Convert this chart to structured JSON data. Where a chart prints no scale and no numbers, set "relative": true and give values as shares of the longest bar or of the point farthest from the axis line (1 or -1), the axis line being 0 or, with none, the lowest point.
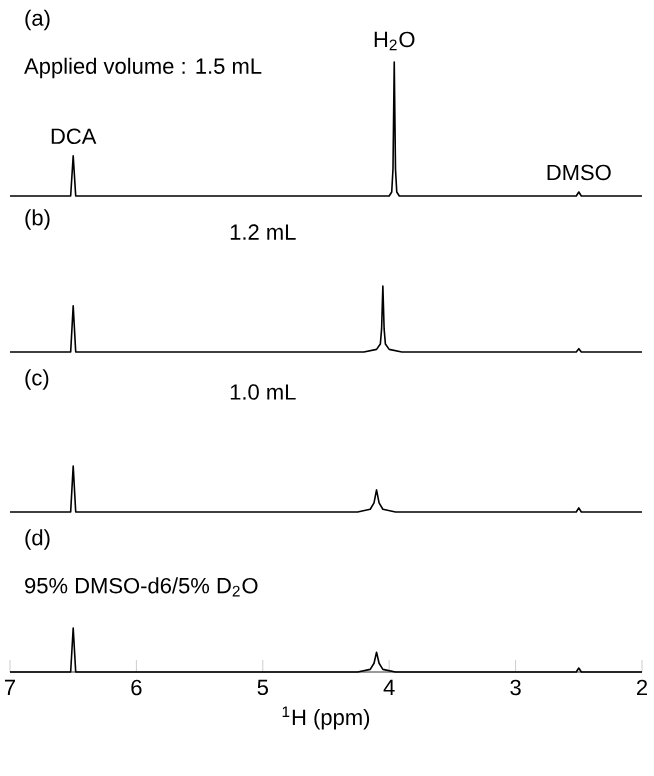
{
  "chart_data": [
    {
      "type": "line",
      "title": "(a)",
      "relative": true,
      "xlim": [
        7,
        2
      ],
      "tick_labels": false,
      "x": [
        7,
        6.52,
        6.5,
        6.48,
        4.1,
        4.0,
        3.98,
        3.97,
        3.96,
        3.95,
        3.94,
        3.92,
        3.8,
        2.52,
        2.5,
        2.48,
        2
      ],
      "series": [
        {
          "color": "#000000",
          "values": [
            0,
            0,
            0.3,
            0,
            0,
            0,
            0.03,
            0.2,
            1,
            0.2,
            0.03,
            0,
            0,
            0,
            0.03,
            0,
            0
          ]
        }
      ],
      "annotations": [
        "Applied volume : 1.5 mL",
        {
          "text": "DCA",
          "x": 6.5,
          "y": 0.3
        },
        {
          "text": "H$_{2}$O",
          "x": 3.96,
          "y": 1
        },
        {
          "text": "DMSO",
          "x": 2.5,
          "y": 0.03
        }
      ]
    },
    {
      "type": "line",
      "title": "(b)",
      "relative": true,
      "xlim": [
        7,
        2
      ],
      "tick_labels": false,
      "x": [
        7,
        6.52,
        6.5,
        6.48,
        4.2,
        4.1,
        4.07,
        4.06,
        4.05,
        4.04,
        4.03,
        4.0,
        3.9,
        2.52,
        2.5,
        2.48,
        2
      ],
      "series": [
        {
          "color": "#000000",
          "values": [
            0,
            0,
            0.7,
            0,
            0,
            0.04,
            0.12,
            0.35,
            1,
            0.35,
            0.12,
            0.04,
            0,
            0,
            0.05,
            0,
            0
          ]
        }
      ],
      "annotations": [
        "1.2 mL"
      ]
    },
    {
      "type": "line",
      "title": "(c)",
      "relative": true,
      "xlim": [
        7,
        2
      ],
      "tick_labels": false,
      "x": [
        7,
        6.52,
        6.5,
        6.48,
        4.25,
        4.15,
        4.12,
        4.1,
        4.08,
        4.05,
        3.95,
        2.52,
        2.5,
        2.48,
        2
      ],
      "series": [
        {
          "color": "#000000",
          "values": [
            0,
            0,
            1,
            0,
            0,
            0.06,
            0.2,
            0.48,
            0.2,
            0.06,
            0,
            0,
            0.09,
            0,
            0
          ]
        }
      ],
      "annotations": [
        "1.0 mL"
      ]
    },
    {
      "type": "line",
      "title": "(d)",
      "relative": true,
      "xlim": [
        7,
        2
      ],
      "xticks": [
        7,
        6,
        5,
        4,
        3,
        2
      ],
      "tick_labels": "x",
      "xlabel": "$^{1}$H (ppm)",
      "x": [
        7,
        6.52,
        6.5,
        6.48,
        4.25,
        4.15,
        4.12,
        4.1,
        4.08,
        4.05,
        3.95,
        2.52,
        2.5,
        2.48,
        2
      ],
      "series": [
        {
          "color": "#000000",
          "values": [
            0,
            0,
            1,
            0,
            0,
            0.06,
            0.2,
            0.45,
            0.2,
            0.06,
            0,
            0,
            0.09,
            0,
            0
          ]
        }
      ],
      "annotations": [
        "95% DMSO-d6/5% D$_{2}$O"
      ]
    }
  ]
}
